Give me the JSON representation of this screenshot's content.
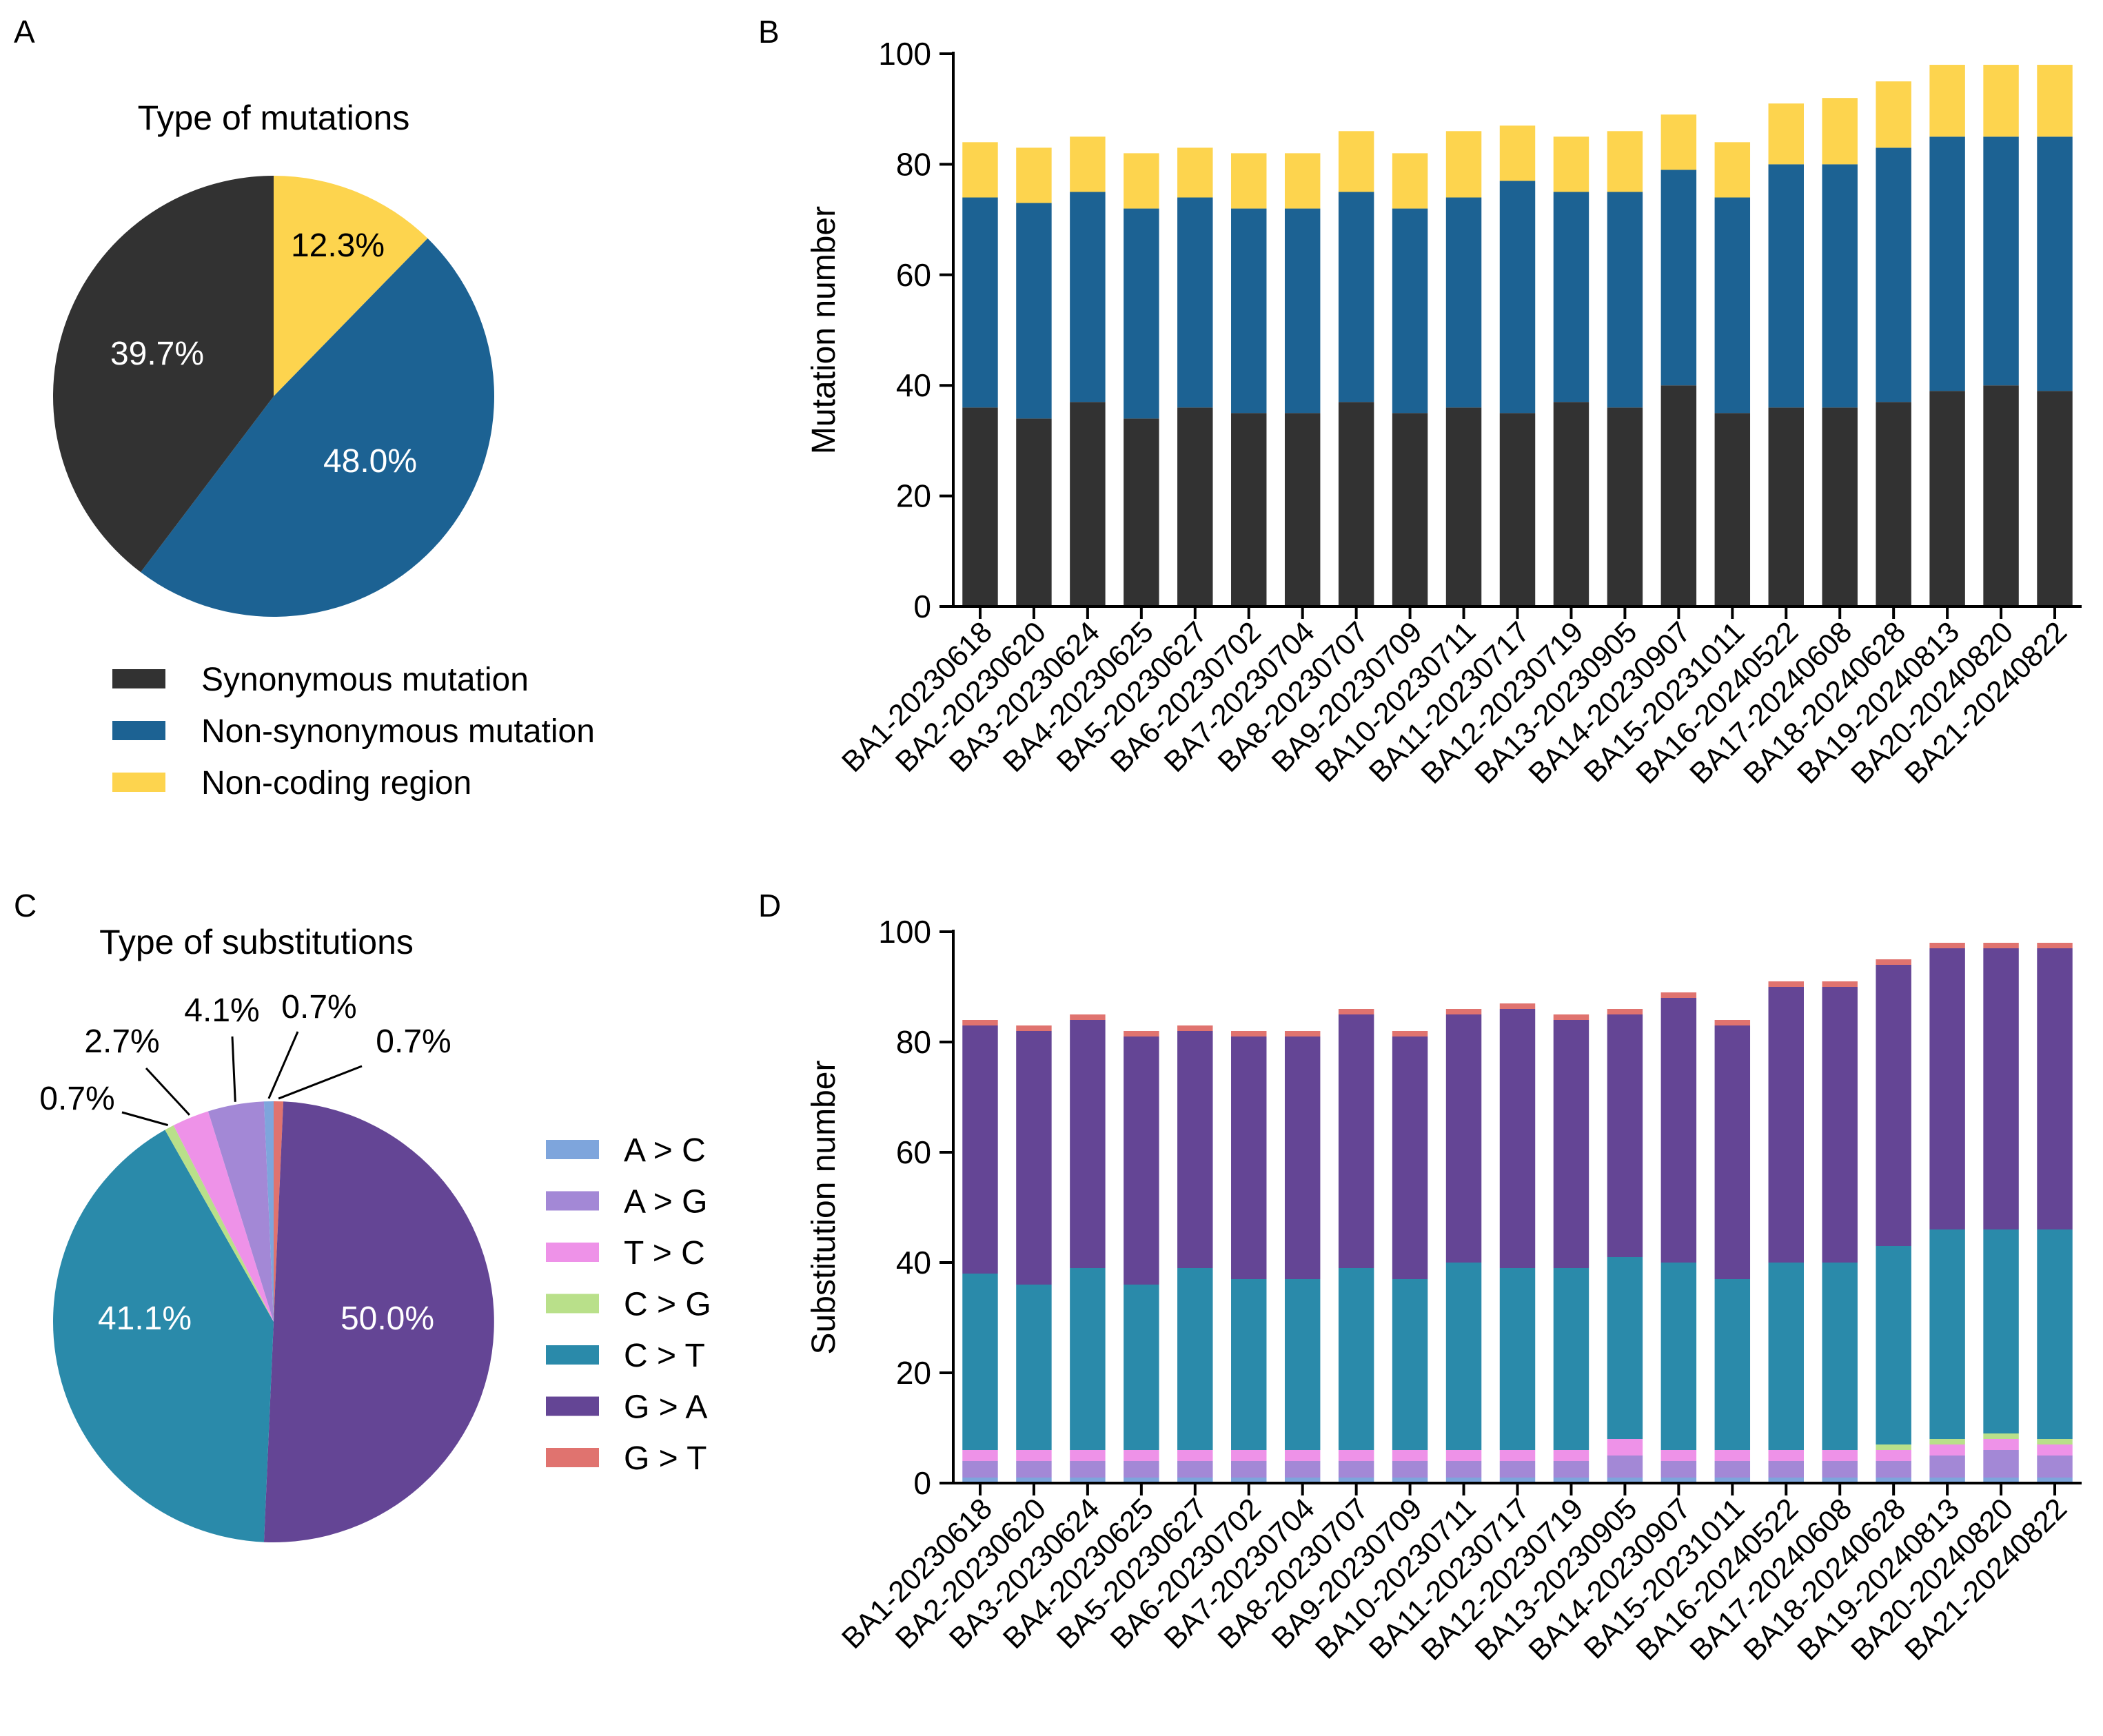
{
  "panels": {
    "a": "A",
    "b": "B",
    "c": "C",
    "d": "D"
  },
  "chart_data": [
    {
      "id": "A",
      "type": "pie",
      "title": "Type of mutations",
      "slices": [
        {
          "key": "non-coding",
          "label": "Non-coding region",
          "value": 12.3,
          "display": "12.3%",
          "color": "#FDD44E",
          "text_color": "#000000"
        },
        {
          "key": "non-synonymous",
          "label": "Non-synonymous mutation",
          "value": 48.0,
          "display": "48.0%",
          "color": "#1C6293",
          "text_color": "#FFFFFF"
        },
        {
          "key": "synonymous",
          "label": "Synonymous mutation",
          "value": 39.7,
          "display": "39.7%",
          "color": "#323232",
          "text_color": "#FFFFFF"
        }
      ],
      "legend": [
        {
          "label": "Synonymous mutation",
          "color": "#323232"
        },
        {
          "label": "Non-synonymous mutation",
          "color": "#1C6293"
        },
        {
          "label": "Non-coding region",
          "color": "#FDD44E"
        }
      ]
    },
    {
      "id": "B",
      "type": "bar",
      "stacked": true,
      "xlabel": "",
      "ylabel": "Mutation number",
      "ylim": [
        0,
        100
      ],
      "yticks": [
        0,
        20,
        40,
        60,
        80,
        100
      ],
      "categories": [
        "BA1-20230618",
        "BA2-20230620",
        "BA3-20230624",
        "BA4-20230625",
        "BA5-20230627",
        "BA6-20230702",
        "BA7-20230704",
        "BA8-20230707",
        "BA9-20230709",
        "BA10-20230711",
        "BA11-20230717",
        "BA12-20230719",
        "BA13-20230905",
        "BA14-20230907",
        "BA15-20231011",
        "BA16-20240522",
        "BA17-20240608",
        "BA18-20240628",
        "BA19-20240813",
        "BA20-20240820",
        "BA21-20240822"
      ],
      "series": [
        {
          "name": "Synonymous mutation",
          "color": "#323232",
          "values": [
            36,
            34,
            37,
            34,
            36,
            35,
            35,
            37,
            35,
            36,
            35,
            37,
            36,
            40,
            35,
            36,
            36,
            37,
            39,
            40,
            39
          ]
        },
        {
          "name": "Non-synonymous mutation",
          "color": "#1C6293",
          "values": [
            38,
            39,
            38,
            38,
            38,
            37,
            37,
            38,
            37,
            38,
            42,
            38,
            39,
            39,
            39,
            44,
            44,
            46,
            46,
            45,
            46
          ]
        },
        {
          "name": "Non-coding region",
          "color": "#FDD44E",
          "values": [
            10,
            10,
            10,
            10,
            9,
            10,
            10,
            11,
            10,
            12,
            10,
            10,
            11,
            10,
            10,
            11,
            12,
            12,
            13,
            13,
            13
          ]
        }
      ]
    },
    {
      "id": "C",
      "type": "pie",
      "title": "Type of substitutions",
      "slices": [
        {
          "key": "GT",
          "label": "G > T",
          "value": 0.7,
          "display": "0.7%",
          "color": "#E0736F"
        },
        {
          "key": "GA",
          "label": "G > A",
          "value": 50.0,
          "display": "50.0%",
          "color": "#644595",
          "text_color": "#FFFFFF"
        },
        {
          "key": "CT",
          "label": "C > T",
          "value": 41.1,
          "display": "41.1%",
          "color": "#2A8AAA",
          "text_color": "#FFFFFF"
        },
        {
          "key": "CG",
          "label": "C > G",
          "value": 0.7,
          "display": "0.7%",
          "color": "#B9E08A"
        },
        {
          "key": "TC",
          "label": "T > C",
          "value": 2.7,
          "display": "2.7%",
          "color": "#EE92E8"
        },
        {
          "key": "AG",
          "label": "A > G",
          "value": 4.1,
          "display": "4.1%",
          "color": "#A388D6"
        },
        {
          "key": "AC",
          "label": "A > C",
          "value": 0.7,
          "display": "0.7%",
          "color": "#7EA5DC"
        }
      ],
      "legend": [
        {
          "label": "A > C",
          "color": "#7EA5DC"
        },
        {
          "label": "A > G",
          "color": "#A388D6"
        },
        {
          "label": "T > C",
          "color": "#EE92E8"
        },
        {
          "label": "C > G",
          "color": "#B9E08A"
        },
        {
          "label": "C > T",
          "color": "#2A8AAA"
        },
        {
          "label": "G > A",
          "color": "#644595"
        },
        {
          "label": "G > T",
          "color": "#E0736F"
        }
      ]
    },
    {
      "id": "D",
      "type": "bar",
      "stacked": true,
      "xlabel": "",
      "ylabel": "Substitution number",
      "ylim": [
        0,
        100
      ],
      "yticks": [
        0,
        20,
        40,
        60,
        80,
        100
      ],
      "categories": [
        "BA1-20230618",
        "BA2-20230620",
        "BA3-20230624",
        "BA4-20230625",
        "BA5-20230627",
        "BA6-20230702",
        "BA7-20230704",
        "BA8-20230707",
        "BA9-20230709",
        "BA10-20230711",
        "BA11-20230717",
        "BA12-20230719",
        "BA13-20230905",
        "BA14-20230907",
        "BA15-20231011",
        "BA16-20240522",
        "BA17-20240608",
        "BA18-20240628",
        "BA19-20240813",
        "BA20-20240820",
        "BA21-20240822"
      ],
      "series": [
        {
          "name": "A > C",
          "color": "#7EA5DC",
          "values": [
            1,
            1,
            1,
            1,
            1,
            1,
            1,
            1,
            1,
            1,
            1,
            1,
            1,
            1,
            1,
            1,
            1,
            1,
            1,
            1,
            1
          ]
        },
        {
          "name": "A > G",
          "color": "#A388D6",
          "values": [
            3,
            3,
            3,
            3,
            3,
            3,
            3,
            3,
            3,
            3,
            3,
            3,
            4,
            3,
            3,
            3,
            3,
            3,
            4,
            5,
            4
          ]
        },
        {
          "name": "T > C",
          "color": "#EE92E8",
          "values": [
            2,
            2,
            2,
            2,
            2,
            2,
            2,
            2,
            2,
            2,
            2,
            2,
            3,
            2,
            2,
            2,
            2,
            2,
            2,
            2,
            2
          ]
        },
        {
          "name": "C > G",
          "color": "#B9E08A",
          "values": [
            0,
            0,
            0,
            0,
            0,
            0,
            0,
            0,
            0,
            0,
            0,
            0,
            0,
            0,
            0,
            0,
            0,
            1,
            1,
            1,
            1
          ]
        },
        {
          "name": "C > T",
          "color": "#2A8AAA",
          "values": [
            32,
            30,
            33,
            30,
            33,
            31,
            31,
            33,
            31,
            34,
            33,
            33,
            33,
            34,
            31,
            34,
            34,
            36,
            38,
            37,
            38
          ]
        },
        {
          "name": "G > A",
          "color": "#644595",
          "values": [
            45,
            46,
            45,
            45,
            43,
            44,
            44,
            46,
            44,
            45,
            47,
            45,
            44,
            48,
            46,
            50,
            50,
            51,
            51,
            51,
            51
          ]
        },
        {
          "name": "G > T",
          "color": "#E0736F",
          "values": [
            1,
            1,
            1,
            1,
            1,
            1,
            1,
            1,
            1,
            1,
            1,
            1,
            1,
            1,
            1,
            1,
            1,
            1,
            1,
            1,
            1
          ]
        }
      ]
    }
  ]
}
